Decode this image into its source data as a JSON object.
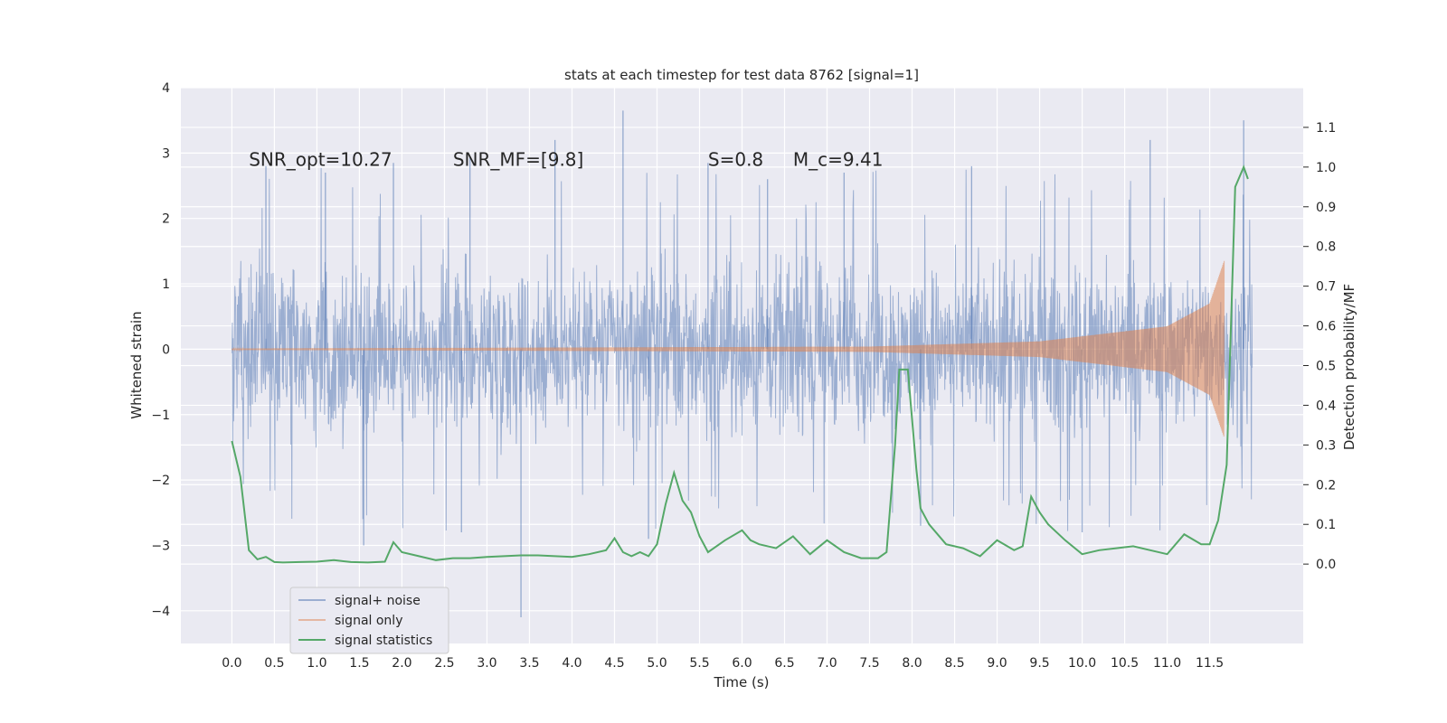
{
  "chart_data": {
    "type": "line",
    "title": "stats at each timestep for test data 8762 [signal=1]",
    "xlabel": "Time (s)",
    "ylabel_left": "Whitened strain",
    "ylabel_right": "Detection probability/MF",
    "xlim": [
      -0.6,
      12.6
    ],
    "ylim_left": [
      -4.5,
      4.0
    ],
    "ylim_right": [
      -0.2,
      1.2
    ],
    "x_ticks": [
      0.0,
      0.5,
      1.0,
      1.5,
      2.0,
      2.5,
      3.0,
      3.5,
      4.0,
      4.5,
      5.0,
      5.5,
      6.0,
      6.5,
      7.0,
      7.5,
      8.0,
      8.5,
      9.0,
      9.5,
      10.0,
      10.5,
      11.0,
      11.5
    ],
    "x_tick_labels": [
      "0.0",
      "0.5",
      "1.0",
      "1.5",
      "2.0",
      "2.5",
      "3.0",
      "3.5",
      "4.0",
      "4.5",
      "5.0",
      "5.5",
      "6.0",
      "6.5",
      "7.0",
      "7.5",
      "8.0",
      "8.5",
      "9.0",
      "9.5",
      "10.0",
      "10.5",
      "11.0",
      "11.5"
    ],
    "y_left_ticks": [
      -4,
      -3,
      -2,
      -1,
      0,
      1,
      2,
      3,
      4
    ],
    "y_left_tick_labels": [
      "−4",
      "−3",
      "−2",
      "−1",
      "0",
      "1",
      "2",
      "3",
      "4"
    ],
    "y_right_ticks": [
      0.0,
      0.1,
      0.2,
      0.3,
      0.4,
      0.5,
      0.6,
      0.7,
      0.8,
      0.9,
      1.0,
      1.1
    ],
    "y_right_tick_labels": [
      "0.0",
      "0.1",
      "0.2",
      "0.3",
      "0.4",
      "0.5",
      "0.6",
      "0.7",
      "0.8",
      "0.9",
      "1.0",
      "1.1"
    ],
    "grid": true,
    "legend_position": "bottom-left",
    "annotations": [
      {
        "text": "SNR_opt=10.27",
        "x": 0.2,
        "y": 2.9
      },
      {
        "text": "SNR_MF=[9.8]",
        "x": 2.6,
        "y": 2.9
      },
      {
        "text": "S=0.8",
        "x": 5.6,
        "y": 2.9
      },
      {
        "text": "M_c=9.41",
        "x": 6.6,
        "y": 2.9
      }
    ],
    "series": [
      {
        "name": "signal+ noise",
        "color": "#4c72b0",
        "axis": "left",
        "x_range": [
          0.0,
          12.0
        ],
        "envelope_upper": 1.8,
        "envelope_lower": -1.8,
        "peaks": [
          {
            "x": 0.4,
            "y": 2.8
          },
          {
            "x": 1.1,
            "y": 2.7
          },
          {
            "x": 1.9,
            "y": 2.85
          },
          {
            "x": 2.8,
            "y": 2.95
          },
          {
            "x": 3.8,
            "y": 3.2
          },
          {
            "x": 4.6,
            "y": 3.65
          },
          {
            "x": 5.6,
            "y": 2.85
          },
          {
            "x": 6.3,
            "y": 2.6
          },
          {
            "x": 7.2,
            "y": 2.7
          },
          {
            "x": 8.7,
            "y": 2.8
          },
          {
            "x": 10.8,
            "y": 3.2
          },
          {
            "x": 11.9,
            "y": 3.5
          }
        ],
        "troughs": [
          {
            "x": 1.55,
            "y": -3.0
          },
          {
            "x": 2.7,
            "y": -2.8
          },
          {
            "x": 3.4,
            "y": -4.1
          },
          {
            "x": 4.9,
            "y": -2.9
          },
          {
            "x": 8.1,
            "y": -2.7
          },
          {
            "x": 10.0,
            "y": -2.8
          }
        ]
      },
      {
        "name": "signal only",
        "color": "#dd8452",
        "axis": "left",
        "x_range": [
          0.0,
          11.67
        ],
        "amplitude_points": [
          {
            "x": 0.0,
            "y": 0.01
          },
          {
            "x": 7.5,
            "y": 0.04
          },
          {
            "x": 9.5,
            "y": 0.12
          },
          {
            "x": 11.0,
            "y": 0.35
          },
          {
            "x": 11.5,
            "y": 0.7
          },
          {
            "x": 11.67,
            "y": 1.35
          }
        ]
      },
      {
        "name": "signal statistics",
        "color": "#55a868",
        "axis": "right",
        "x": [
          0.0,
          0.1,
          0.2,
          0.3,
          0.4,
          0.5,
          0.6,
          0.8,
          1.0,
          1.2,
          1.4,
          1.6,
          1.8,
          1.9,
          2.0,
          2.2,
          2.4,
          2.6,
          2.8,
          3.0,
          3.2,
          3.4,
          3.6,
          3.8,
          4.0,
          4.2,
          4.4,
          4.5,
          4.6,
          4.7,
          4.8,
          4.9,
          5.0,
          5.1,
          5.2,
          5.3,
          5.4,
          5.5,
          5.6,
          5.8,
          6.0,
          6.1,
          6.2,
          6.4,
          6.6,
          6.8,
          7.0,
          7.2,
          7.4,
          7.6,
          7.7,
          7.8,
          7.85,
          7.95,
          8.05,
          8.1,
          8.2,
          8.4,
          8.6,
          8.8,
          9.0,
          9.2,
          9.3,
          9.4,
          9.5,
          9.6,
          9.8,
          10.0,
          10.2,
          10.4,
          10.6,
          10.8,
          11.0,
          11.2,
          11.4,
          11.5,
          11.6,
          11.7,
          11.8,
          11.9,
          11.95
        ],
        "y": [
          0.31,
          0.22,
          0.035,
          0.012,
          0.018,
          0.005,
          0.004,
          0.005,
          0.006,
          0.01,
          0.005,
          0.004,
          0.006,
          0.055,
          0.03,
          0.02,
          0.01,
          0.015,
          0.015,
          0.018,
          0.02,
          0.022,
          0.022,
          0.02,
          0.018,
          0.025,
          0.035,
          0.065,
          0.03,
          0.02,
          0.03,
          0.02,
          0.05,
          0.15,
          0.23,
          0.16,
          0.13,
          0.07,
          0.03,
          0.06,
          0.085,
          0.06,
          0.05,
          0.04,
          0.07,
          0.025,
          0.06,
          0.03,
          0.015,
          0.015,
          0.03,
          0.3,
          0.49,
          0.49,
          0.24,
          0.14,
          0.1,
          0.05,
          0.04,
          0.02,
          0.06,
          0.035,
          0.045,
          0.17,
          0.13,
          0.1,
          0.06,
          0.025,
          0.035,
          0.04,
          0.045,
          0.035,
          0.025,
          0.075,
          0.05,
          0.05,
          0.11,
          0.25,
          0.95,
          1.0,
          0.97
        ]
      }
    ],
    "legend": [
      "signal+ noise",
      "signal only",
      "signal statistics"
    ]
  }
}
